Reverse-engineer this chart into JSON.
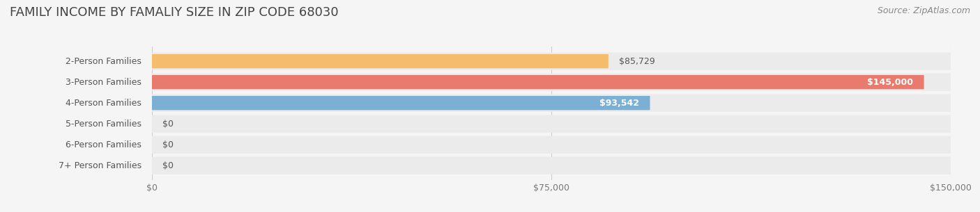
{
  "title": "FAMILY INCOME BY FAMALIY SIZE IN ZIP CODE 68030",
  "source": "Source: ZipAtlas.com",
  "categories": [
    "2-Person Families",
    "3-Person Families",
    "4-Person Families",
    "5-Person Families",
    "6-Person Families",
    "7+ Person Families"
  ],
  "values": [
    85729,
    145000,
    93542,
    0,
    0,
    0
  ],
  "bar_colors": [
    "#f5bc6e",
    "#e87b6e",
    "#7bafd4",
    "#c9a8c9",
    "#6dbfb8",
    "#a8b8e0"
  ],
  "label_colors": [
    "#6b5a3a",
    "#ffffff",
    "#ffffff",
    "#6b5a3a",
    "#6b5a3a",
    "#6b5a3a"
  ],
  "value_labels": [
    "$85,729",
    "$145,000",
    "$93,542",
    "$0",
    "$0",
    "$0"
  ],
  "xlim": [
    0,
    150000
  ],
  "xticks": [
    0,
    75000,
    150000
  ],
  "xtick_labels": [
    "$0",
    "$75,000",
    "$150,000"
  ],
  "background_color": "#f5f5f5",
  "bar_background_color": "#ebebeb",
  "title_fontsize": 13,
  "title_color": "#444444",
  "label_fontsize": 9,
  "source_fontsize": 9,
  "source_color": "#888888"
}
